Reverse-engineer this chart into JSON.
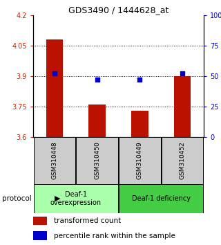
{
  "title": "GDS3490 / 1444628_at",
  "samples": [
    "GSM310448",
    "GSM310450",
    "GSM310449",
    "GSM310452"
  ],
  "bar_values": [
    4.08,
    3.76,
    3.73,
    3.9
  ],
  "dot_values": [
    52,
    47,
    47,
    52
  ],
  "ylim_left": [
    3.6,
    4.2
  ],
  "ylim_right": [
    0,
    100
  ],
  "yticks_left": [
    3.6,
    3.75,
    3.9,
    4.05,
    4.2
  ],
  "ytick_labels_left": [
    "3.6",
    "3.75",
    "3.9",
    "4.05",
    "4.2"
  ],
  "yticks_right": [
    0,
    25,
    50,
    75,
    100
  ],
  "ytick_labels_right": [
    "0",
    "25",
    "50",
    "75",
    "100%"
  ],
  "bar_color": "#bb1100",
  "dot_color": "#0000cc",
  "bar_width": 0.4,
  "group1_color": "#aaffaa",
  "group2_color": "#44cc44",
  "sample_box_color": "#cccccc",
  "legend_bar_label": "transformed count",
  "legend_dot_label": "percentile rank within the sample",
  "protocol_label": "protocol",
  "background_color": "#ffffff",
  "plot_bg_color": "#ffffff",
  "left_tick_color": "#cc2200",
  "right_tick_color": "#0000cc",
  "grid_yticks": [
    3.75,
    3.9,
    4.05
  ],
  "group1_label": "Deaf-1\noverexpression",
  "group2_label": "Deaf-1 deficiency"
}
